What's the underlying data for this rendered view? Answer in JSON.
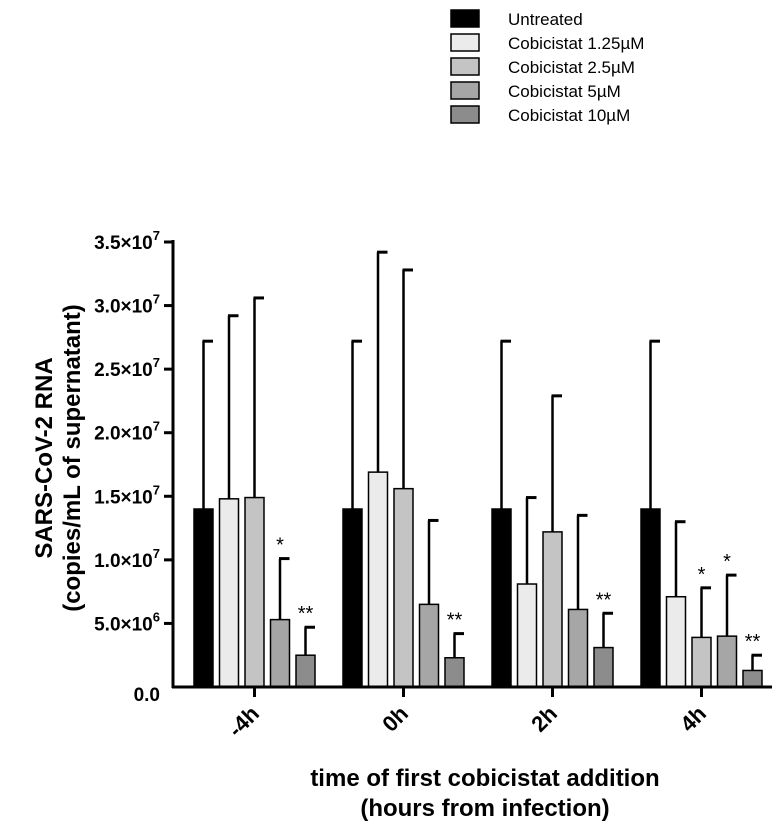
{
  "chart_data": {
    "type": "bar",
    "categories": [
      "-4h",
      "0h",
      "2h",
      "4h"
    ],
    "series": [
      {
        "name": "Untreated",
        "color": "#000000",
        "values": [
          14000000,
          14000000,
          14000000,
          14000000
        ],
        "errors": [
          13200000,
          13200000,
          13200000,
          13200000
        ],
        "significance": [
          "",
          "",
          "",
          ""
        ]
      },
      {
        "name": "Cobicistat 1.25µM",
        "color": "#ebebeb",
        "values": [
          14800000,
          16900000,
          8100000,
          7100000
        ],
        "errors": [
          14400000,
          17300000,
          6800000,
          5900000
        ],
        "significance": [
          "",
          "",
          "",
          ""
        ]
      },
      {
        "name": "Cobicistat 2.5µM",
        "color": "#c4c4c4",
        "values": [
          14900000,
          15600000,
          12200000,
          3900000
        ],
        "errors": [
          15700000,
          17200000,
          10700000,
          3900000
        ],
        "significance": [
          "",
          "",
          "",
          "*"
        ]
      },
      {
        "name": "Cobicistat 5µM",
        "color": "#a6a6a6",
        "values": [
          5300000,
          6500000,
          6100000,
          4000000
        ],
        "errors": [
          4800000,
          6600000,
          7400000,
          4800000
        ],
        "significance": [
          "*",
          "",
          "",
          "*"
        ]
      },
      {
        "name": "Cobicistat 10µM",
        "color": "#8c8c8c",
        "values": [
          2500000,
          2300000,
          3100000,
          1300000
        ],
        "errors": [
          2200000,
          1900000,
          2700000,
          1200000
        ],
        "significance": [
          "**",
          "**",
          "**",
          "**"
        ]
      }
    ],
    "ylim": [
      0,
      35000000
    ],
    "ytick_values": [
      0,
      5000000,
      10000000,
      15000000,
      20000000,
      25000000,
      30000000,
      35000000
    ],
    "ytick_labels": [
      {
        "mant": "0.0",
        "exp": ""
      },
      {
        "mant": "5.0×10",
        "exp": "6"
      },
      {
        "mant": "1.0×10",
        "exp": "7"
      },
      {
        "mant": "1.5×10",
        "exp": "7"
      },
      {
        "mant": "2.0×10",
        "exp": "7"
      },
      {
        "mant": "2.5×10",
        "exp": "7"
      },
      {
        "mant": "3.0×10",
        "exp": "7"
      },
      {
        "mant": "3.5×10",
        "exp": "7"
      }
    ],
    "ylabel_line1": "SARS-CoV-2 RNA",
    "ylabel_line2": "(copies/mL of supernatant)",
    "xlabel_line1": "time of first cobicistat addition",
    "xlabel_line2": "(hours from infection)",
    "legend_position": "top-right",
    "grid": false
  }
}
